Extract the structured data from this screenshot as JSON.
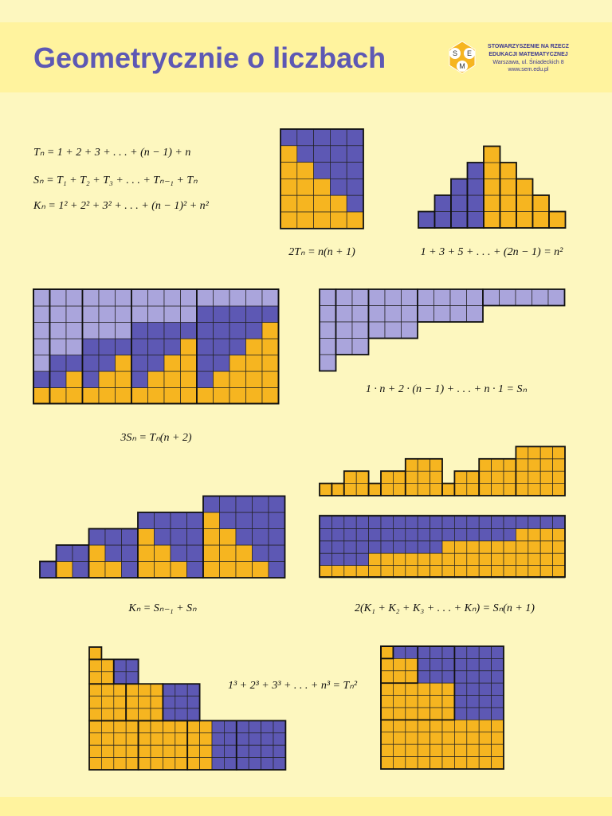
{
  "header": {
    "title": "Geometrycznie o liczbach",
    "logo": {
      "letters": [
        "S",
        "E",
        "M"
      ]
    },
    "org": [
      "STOWARZYSZENIE NA RZECZ",
      "EDUKACJI MATEMATYCZNEJ",
      "Warszawa, ul. Śniadeckich 8",
      "www.sem.edu.pl"
    ]
  },
  "formulas": {
    "definitions": [
      "Tₙ = 1 + 2 + 3 + . . . + (n − 1) + n",
      "Sₙ = T₁ + T₂ + T₃ + . . . + Tₙ₋₁ + Tₙ",
      "Kₙ = 1² + 2² + 3² + . . . + (n − 1)² + n²"
    ],
    "triangular": "2Tₙ = n(n + 1)",
    "odd_sum": "1 + 3 + 5 + . . . + (2n − 1) = n²",
    "weighted_sum": "1 · n + 2 · (n − 1) + . . . + n · 1 = Sₙ",
    "tetrahedral": "3Sₙ = Tₙ(n + 2)",
    "square_pyramidal": "Kₙ = Sₙ₋₁ + Sₙ",
    "pyramidal_sum": "2(K₁ + K₂ + K₃ + . . . + Kₙ) = Sₙ(n + 1)",
    "cubes": "1³ + 2³ + 3³ + . . . + n³ = Tₙ²"
  }
}
